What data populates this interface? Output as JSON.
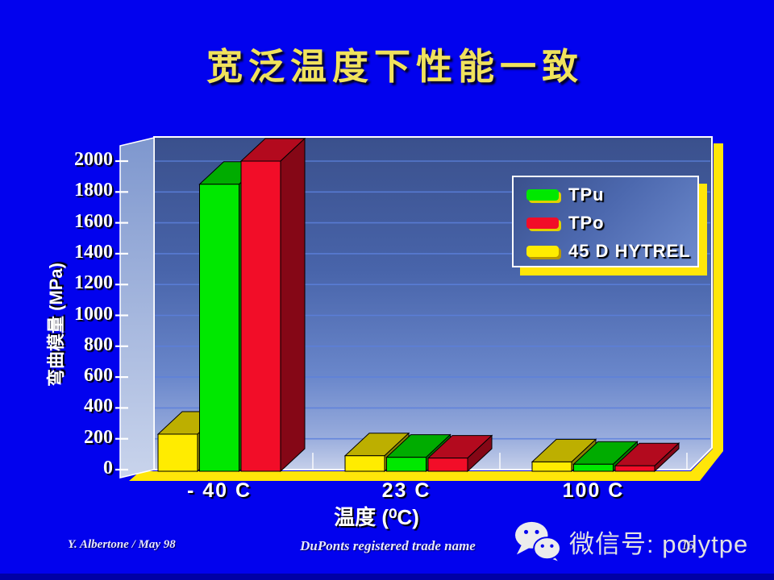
{
  "slide": {
    "title": "宽泛温度下性能一致",
    "footer": {
      "author": "Y. Albertone / May 98",
      "note": "DuPonts registered trade name",
      "page_number": "15"
    },
    "wechat": {
      "label": "微信号: polytpe"
    }
  },
  "chart_data": {
    "type": "bar",
    "title": "",
    "categories": [
      "- 40  C",
      "23 C",
      "100 C"
    ],
    "series": [
      {
        "name": "45 D HYTREL",
        "color": "#FFEC00",
        "values": [
          230,
          90,
          50
        ]
      },
      {
        "name": "TPu",
        "color": "#00E800",
        "values": [
          1850,
          80,
          35
        ]
      },
      {
        "name": "TPo",
        "color": "#F20D28",
        "values": [
          2000,
          75,
          25
        ]
      }
    ],
    "legend": {
      "position": "upper-right",
      "items": [
        {
          "label": "TPu",
          "color": "#00E800"
        },
        {
          "label": "TPo",
          "color": "#F20D28"
        },
        {
          "label": "45 D HYTREL",
          "color": "#FFEC00"
        }
      ]
    },
    "xlabel": "温度 (⁰C)",
    "ylabel": "弯曲模量 (MPa)",
    "ylim": [
      0,
      2000
    ],
    "ytick_step": 200,
    "grid": true,
    "y_tick_labels": [
      "2000",
      "1800",
      "1600",
      "1400",
      "1200",
      "1000",
      "800",
      "600",
      "400",
      "200",
      "0"
    ]
  },
  "style": {
    "background": "#0202EE",
    "title_color": "#F0E25C",
    "accent_yellow": "#FFE609",
    "grid_color": "#5C80DC",
    "text_color": "#FFFFFF"
  }
}
